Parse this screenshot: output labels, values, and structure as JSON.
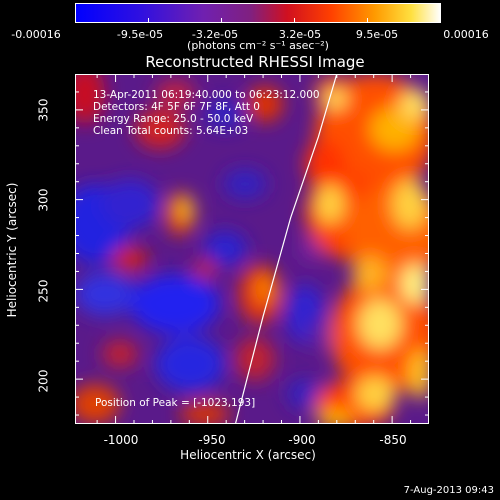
{
  "colorbar": {
    "ticks": [
      "-0.00016",
      "-9.5e-05",
      "-3.2e-05",
      "3.2e-05",
      "9.5e-05",
      "0.00016"
    ],
    "units": "(photons cm⁻² s⁻¹ asec⁻²)",
    "colors": [
      "#0000ff",
      "#4020c0",
      "#8020a0",
      "#c02040",
      "#ff4000",
      "#ff9000",
      "#ffd000",
      "#ffffff"
    ]
  },
  "plot": {
    "title": "Reconstructed RHESSI Image",
    "time_range": "13-Apr-2011 06:19:40.000 to 06:23:12.000",
    "detectors": "Detectors: 4F 5F 6F 7F 8F, Att 0",
    "energy": "Energy Range: 25.0 - 50.0 keV",
    "method": "Clean     Total counts: 5.64E+03",
    "peak": "Position of Peak = [-1023,193]",
    "xlabel": "Heliocentric X (arcsec)",
    "ylabel": "Heliocentric Y (arcsec)",
    "xticks": [
      "-1000",
      "-950",
      "-900",
      "-850"
    ],
    "yticks": [
      "200",
      "250",
      "300",
      "350"
    ],
    "limb_color": "#ffffff"
  },
  "footer": {
    "timestamp": "7-Aug-2013 09:43"
  },
  "chart_data": {
    "type": "heatmap",
    "title": "Reconstructed RHESSI Image",
    "xlabel": "Heliocentric X (arcsec)",
    "ylabel": "Heliocentric Y (arcsec)",
    "xlim": [
      -1022,
      -830
    ],
    "ylim": [
      175,
      370
    ],
    "x_ticks": [
      -1000,
      -950,
      -900,
      -850
    ],
    "y_ticks": [
      200,
      250,
      300,
      350
    ],
    "colorbar_range": [
      -0.00016,
      0.00016
    ],
    "peak_position": [
      -1023,
      193
    ],
    "limb": [
      [
        -935,
        175
      ],
      [
        -920,
        235
      ],
      [
        -905,
        290
      ],
      [
        -890,
        335
      ],
      [
        -880,
        370
      ]
    ]
  }
}
